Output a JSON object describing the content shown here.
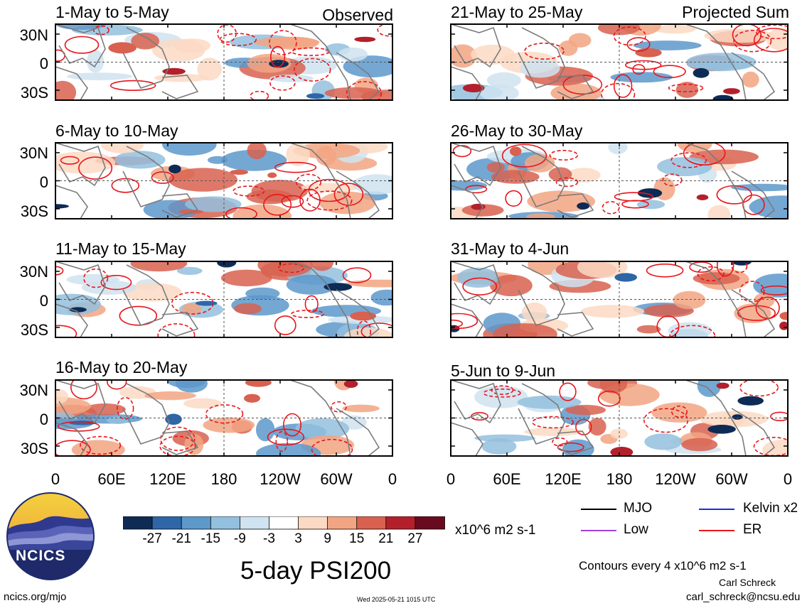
{
  "panels": [
    {
      "title": "1-May to 5-May",
      "label": "Observed"
    },
    {
      "title": "6-May to 10-May",
      "label": ""
    },
    {
      "title": "11-May to 15-May",
      "label": ""
    },
    {
      "title": "16-May to 20-May",
      "label": ""
    },
    {
      "title": "21-May to 25-May",
      "label": "Projected Sum"
    },
    {
      "title": "26-May to 30-May",
      "label": ""
    },
    {
      "title": "31-May to 4-Jun",
      "label": ""
    },
    {
      "title": "5-Jun to 9-Jun",
      "label": ""
    }
  ],
  "y_ticks": [
    "30N",
    "0",
    "30S"
  ],
  "x_ticks": [
    "0",
    "60E",
    "120E",
    "180",
    "120W",
    "60W",
    "0"
  ],
  "colorbar": {
    "ticks": [
      "-27",
      "-21",
      "-15",
      "-9",
      "-3",
      "3",
      "9",
      "15",
      "21",
      "27"
    ],
    "units": "x10^6 m2 s-1",
    "colors": [
      "#0d2b55",
      "#2e66a8",
      "#5d98cb",
      "#93c0de",
      "#cfe3f0",
      "#ffffff",
      "#fcd9c3",
      "#f2a582",
      "#d86150",
      "#b3202b",
      "#6a0a20"
    ]
  },
  "legend": [
    {
      "label": "MJO",
      "color": "#000000"
    },
    {
      "label": "Kelvin x2",
      "color": "#1a2be8"
    },
    {
      "label": "Low",
      "color": "#a040e0"
    },
    {
      "label": "ER",
      "color": "#e8161c"
    }
  ],
  "main_title": "5-day PSI200",
  "contour_note": "Contours every 4 x10^6 m2 s-1",
  "site": "ncics.org/mjo",
  "timestamp": "Wed 2025-05-21 1015 UTC",
  "author": "Carl Schreck",
  "email": "carl_schreck@ncsu.edu",
  "logo_text": "NCICS"
}
